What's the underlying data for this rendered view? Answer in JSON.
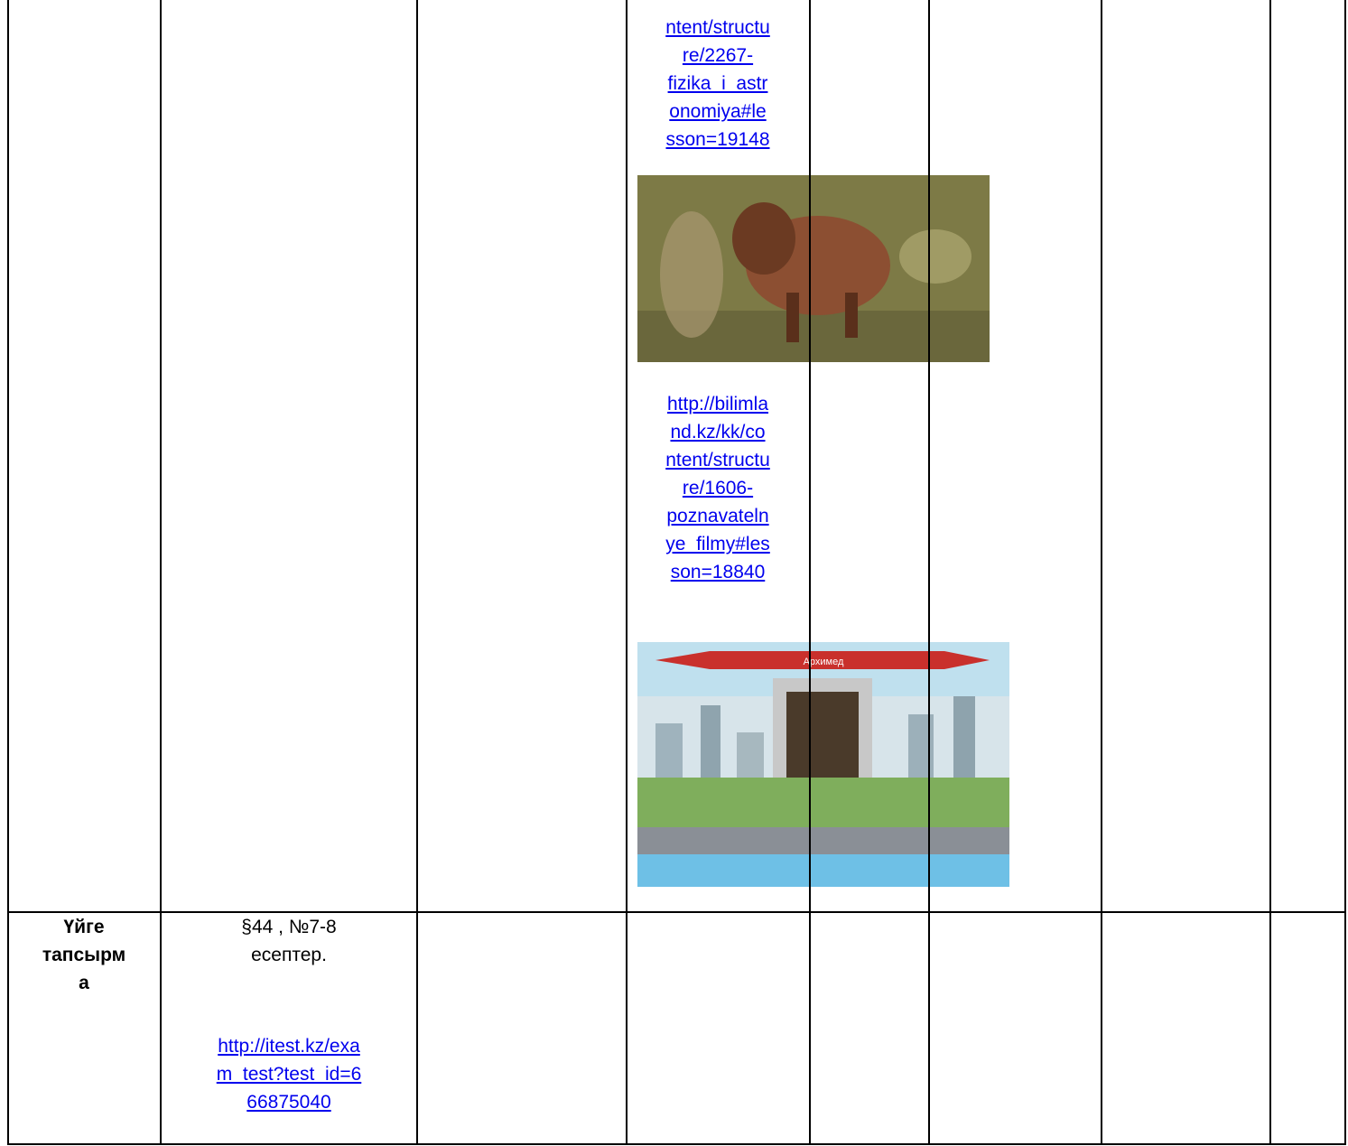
{
  "row1": {
    "link1_lines": [
      "ntent/structu",
      "re/2267-",
      "fizika_i_astr",
      "onomiya#le",
      "sson=19148"
    ],
    "link2_lines": [
      "http://bilimla",
      "nd.kz/kk/co",
      "ntent/structu",
      "re/1606-",
      "poznavateln",
      "ye_filmy#les",
      "son=18840"
    ],
    "image2_caption": "Архимед"
  },
  "row2": {
    "label_lines": [
      "Үйге",
      "тапсырм",
      "а"
    ],
    "task_lines": [
      "§44 , №7-8",
      "есептер."
    ],
    "link_lines": [
      "http://itest.kz/exa",
      "m_test?test_id=6",
      "66875040"
    ]
  }
}
